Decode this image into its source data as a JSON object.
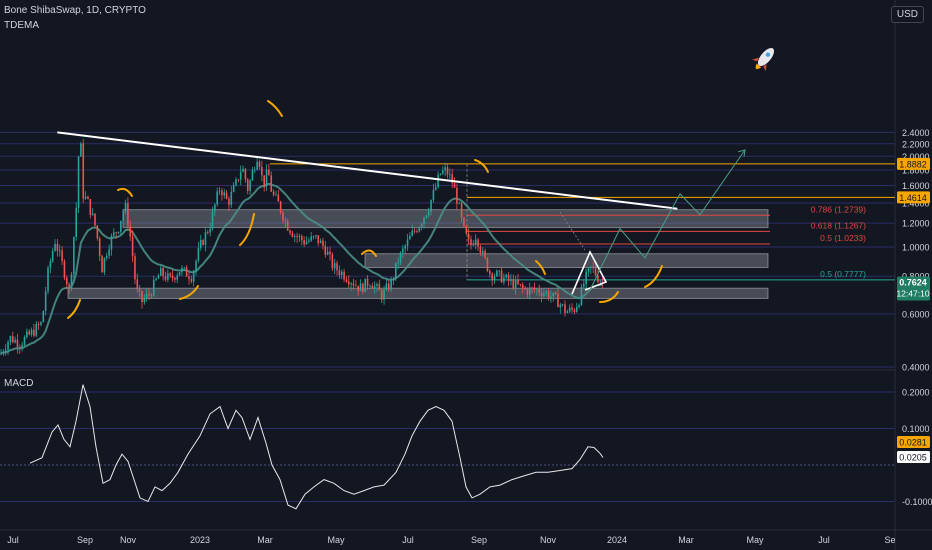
{
  "header": {
    "symbol_line": "Bone ShibaSwap, 1D, CRYPTO",
    "indicator": "TDEMA",
    "currency": "USD",
    "macd_label": "MACD"
  },
  "colors": {
    "background": "#131722",
    "grid": "#2a2e66",
    "up": "#26a69a",
    "down": "#ef5350",
    "ema": "#4a8f86",
    "trendline": "#ffffff",
    "zone": "#8a8d96",
    "fib_red": "#e0483e",
    "fib_orange": "#f7a600",
    "fib_green": "#26a69a",
    "arc": "#f7a600",
    "projection": "#4a9e86",
    "price_tag": "#1e7d62"
  },
  "chart_data": [
    {
      "type": "candlestick",
      "title": "Bone ShibaSwap, 1D, CRYPTO",
      "indicator": "TDEMA",
      "x_ticks": [
        "Jul",
        "Sep",
        "Nov",
        "2023",
        "Mar",
        "May",
        "Jul",
        "Sep",
        "Nov",
        "2024",
        "Mar",
        "May",
        "Jul",
        "Se"
      ],
      "y_ticks": [
        "2.4000",
        "2.2000",
        "2.0000",
        "1.8000",
        "1.6000",
        "1.4000",
        "1.2000",
        "1.0000",
        "0.8000",
        "0.6000",
        "0.4000"
      ],
      "ylim": [
        0.39,
        2.45
      ],
      "price_path": [
        [
          0,
          0.44
        ],
        [
          10,
          0.5
        ],
        [
          20,
          0.48
        ],
        [
          32,
          0.52
        ],
        [
          42,
          0.56
        ],
        [
          48,
          0.82
        ],
        [
          55,
          1.05
        ],
        [
          62,
          0.88
        ],
        [
          70,
          0.7
        ],
        [
          76,
          1.3
        ],
        [
          80,
          2.4
        ],
        [
          83,
          1.5
        ],
        [
          88,
          1.4
        ],
        [
          95,
          1.18
        ],
        [
          102,
          0.85
        ],
        [
          110,
          1.05
        ],
        [
          118,
          1.15
        ],
        [
          125,
          1.38
        ],
        [
          130,
          1.1
        ],
        [
          136,
          0.72
        ],
        [
          142,
          0.66
        ],
        [
          150,
          0.7
        ],
        [
          160,
          0.82
        ],
        [
          170,
          0.78
        ],
        [
          180,
          0.84
        ],
        [
          192,
          0.8
        ],
        [
          200,
          1.0
        ],
        [
          210,
          1.18
        ],
        [
          220,
          1.58
        ],
        [
          228,
          1.4
        ],
        [
          236,
          1.62
        ],
        [
          242,
          1.85
        ],
        [
          248,
          1.55
        ],
        [
          253,
          1.8
        ],
        [
          258,
          2.05
        ],
        [
          263,
          1.6
        ],
        [
          268,
          1.78
        ],
        [
          272,
          1.5
        ],
        [
          278,
          1.4
        ],
        [
          286,
          1.2
        ],
        [
          294,
          1.1
        ],
        [
          305,
          1.04
        ],
        [
          316,
          1.07
        ],
        [
          325,
          0.99
        ],
        [
          333,
          0.86
        ],
        [
          342,
          0.82
        ],
        [
          350,
          0.78
        ],
        [
          360,
          0.73
        ],
        [
          370,
          0.77
        ],
        [
          382,
          0.69
        ],
        [
          392,
          0.77
        ],
        [
          398,
          0.9
        ],
        [
          405,
          1.0
        ],
        [
          412,
          1.1
        ],
        [
          420,
          1.2
        ],
        [
          428,
          1.34
        ],
        [
          435,
          1.55
        ],
        [
          440,
          1.75
        ],
        [
          446,
          1.8
        ],
        [
          452,
          1.65
        ],
        [
          458,
          1.4
        ],
        [
          463,
          1.15
        ],
        [
          470,
          1.0
        ],
        [
          476,
          1.1
        ],
        [
          482,
          0.95
        ],
        [
          490,
          0.82
        ],
        [
          500,
          0.8
        ],
        [
          512,
          0.76
        ],
        [
          525,
          0.72
        ],
        [
          538,
          0.72
        ],
        [
          548,
          0.7
        ],
        [
          558,
          0.66
        ],
        [
          566,
          0.61
        ],
        [
          574,
          0.62
        ],
        [
          580,
          0.68
        ],
        [
          585,
          0.78
        ],
        [
          592,
          0.86
        ],
        [
          597,
          0.8
        ],
        [
          603,
          0.7624
        ]
      ],
      "current_price": "0.7624",
      "countdown": "12:47:10",
      "resistance_zones": [
        [
          1.16,
          1.33
        ],
        [
          0.855,
          0.95
        ],
        [
          0.675,
          0.73
        ]
      ],
      "trendline": {
        "from": [
          "Aug 2022",
          2.4
        ],
        "to": [
          "Feb 2024",
          1.34
        ]
      },
      "horizontal_levels": [
        {
          "label": "1.8882",
          "value": 1.888,
          "color": "orange"
        },
        {
          "label": "1.4614",
          "value": 1.461,
          "color": "orange"
        }
      ],
      "fib_levels": [
        {
          "label": "0.786 (1.2739)",
          "value": 1.274,
          "color": "red"
        },
        {
          "label": "0.618 (1.1267)",
          "value": 1.127,
          "color": "red"
        },
        {
          "label": "0.5 (1.0233)",
          "value": 1.023,
          "color": "red"
        },
        {
          "label": "0.5 (0.7777)",
          "value": 0.778,
          "color": "green"
        }
      ],
      "projection_path": [
        [
          590,
          0.72
        ],
        [
          620,
          1.15
        ],
        [
          645,
          0.92
        ],
        [
          680,
          1.5
        ],
        [
          700,
          1.28
        ],
        [
          745,
          2.1
        ]
      ],
      "icon": "rocket-icon"
    },
    {
      "type": "line",
      "title": "MACD",
      "y_ticks": [
        "0.2000",
        "0.1000",
        "-0.1000"
      ],
      "ylim": [
        -0.145,
        0.245
      ],
      "series": [
        {
          "values_path": [
            [
              30,
              0.005
            ],
            [
              42,
              0.02
            ],
            [
              52,
              0.09
            ],
            [
              58,
              0.11
            ],
            [
              64,
              0.07
            ],
            [
              70,
              0.05
            ],
            [
              76,
              0.12
            ],
            [
              83,
              0.22
            ],
            [
              90,
              0.16
            ],
            [
              96,
              0.05
            ],
            [
              103,
              -0.05
            ],
            [
              110,
              -0.04
            ],
            [
              116,
              0.0
            ],
            [
              122,
              0.03
            ],
            [
              128,
              0.01
            ],
            [
              134,
              -0.04
            ],
            [
              140,
              -0.09
            ],
            [
              148,
              -0.1
            ],
            [
              155,
              -0.06
            ],
            [
              162,
              -0.07
            ],
            [
              170,
              -0.05
            ],
            [
              178,
              -0.02
            ],
            [
              188,
              0.03
            ],
            [
              200,
              0.08
            ],
            [
              210,
              0.14
            ],
            [
              220,
              0.16
            ],
            [
              228,
              0.1
            ],
            [
              236,
              0.15
            ],
            [
              242,
              0.13
            ],
            [
              250,
              0.07
            ],
            [
              258,
              0.13
            ],
            [
              266,
              0.06
            ],
            [
              272,
              0.0
            ],
            [
              280,
              -0.04
            ],
            [
              288,
              -0.11
            ],
            [
              296,
              -0.12
            ],
            [
              305,
              -0.08
            ],
            [
              314,
              -0.06
            ],
            [
              324,
              -0.04
            ],
            [
              334,
              -0.05
            ],
            [
              344,
              -0.07
            ],
            [
              354,
              -0.08
            ],
            [
              364,
              -0.07
            ],
            [
              374,
              -0.06
            ],
            [
              384,
              -0.055
            ],
            [
              396,
              -0.02
            ],
            [
              405,
              0.03
            ],
            [
              412,
              0.08
            ],
            [
              420,
              0.12
            ],
            [
              428,
              0.15
            ],
            [
              436,
              0.16
            ],
            [
              444,
              0.15
            ],
            [
              452,
              0.12
            ],
            [
              460,
              0.02
            ],
            [
              466,
              -0.06
            ],
            [
              472,
              -0.09
            ],
            [
              480,
              -0.08
            ],
            [
              490,
              -0.06
            ],
            [
              500,
              -0.055
            ],
            [
              512,
              -0.04
            ],
            [
              524,
              -0.03
            ],
            [
              536,
              -0.02
            ],
            [
              548,
              -0.02
            ],
            [
              560,
              -0.015
            ],
            [
              572,
              -0.01
            ],
            [
              580,
              0.015
            ],
            [
              588,
              0.05
            ],
            [
              594,
              0.048
            ],
            [
              600,
              0.032
            ],
            [
              603,
              0.0205
            ]
          ]
        }
      ],
      "value_tags": [
        "0.0281",
        "0.0205"
      ]
    }
  ]
}
